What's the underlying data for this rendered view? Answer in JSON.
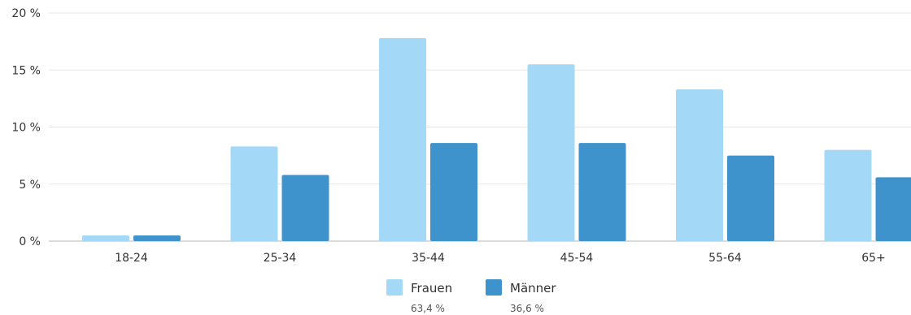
{
  "chart_data": {
    "type": "bar",
    "categories": [
      "18-24",
      "25-34",
      "35-44",
      "45-54",
      "55-64",
      "65+"
    ],
    "series": [
      {
        "name": "Frauen",
        "share": "63,4 %",
        "color": "#a3d9f7",
        "values": [
          0.5,
          8.3,
          17.8,
          15.5,
          13.3,
          8.0
        ]
      },
      {
        "name": "Männer",
        "share": "36,6 %",
        "color": "#3f93cc",
        "values": [
          0.5,
          5.8,
          8.6,
          8.6,
          7.5,
          5.6
        ]
      }
    ],
    "ylim": [
      0,
      20
    ],
    "yticks": [
      0,
      5,
      10,
      15,
      20
    ],
    "ytick_labels": [
      "0 %",
      "5 %",
      "10 %",
      "15 %",
      "20 %"
    ],
    "grid": true,
    "legend_position": "bottom-center",
    "title": "",
    "xlabel": "",
    "ylabel": ""
  }
}
